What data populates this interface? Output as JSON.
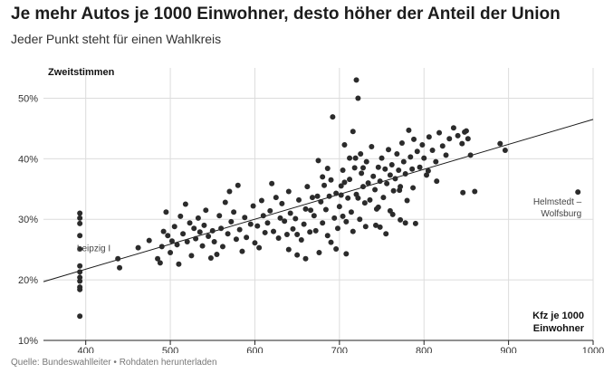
{
  "header": {
    "title": "Je mehr Autos je 1000 Einwohner, desto höher der Anteil der Union",
    "subtitle": "Jeder Punkt steht für einen Wahlkreis"
  },
  "footer": {
    "source": "Quelle: Bundeswahlleiter",
    "separator": " • ",
    "download_link": "Rohdaten herunterladen"
  },
  "colors": {
    "points": "#2b2b2b",
    "trendline": "#1a1a1a",
    "grid": "#dcdcdc",
    "axis": "#222222"
  },
  "chart_data": {
    "type": "scatter",
    "ylabel": "Zweitstimmen",
    "xlabel_lines": [
      "Kfz je 1000",
      "Einwohner"
    ],
    "xlim": [
      350,
      1000
    ],
    "ylim": [
      10,
      55
    ],
    "xticks": [
      {
        "value": 400,
        "label": "400"
      },
      {
        "value": 500,
        "label": "500"
      },
      {
        "value": 600,
        "label": "600"
      },
      {
        "value": 700,
        "label": "700"
      },
      {
        "value": 800,
        "label": "800"
      },
      {
        "value": 900,
        "label": "900"
      },
      {
        "value": 1000,
        "label": "1000"
      }
    ],
    "yticks": [
      {
        "value": 10,
        "label": "10%"
      },
      {
        "value": 20,
        "label": "20%"
      },
      {
        "value": 30,
        "label": "30%"
      },
      {
        "value": 40,
        "label": "40%"
      },
      {
        "value": 50,
        "label": "50%"
      }
    ],
    "grid": true,
    "trendline": {
      "x": [
        350,
        1000
      ],
      "y": [
        19.7,
        46.5
      ]
    },
    "annotations": [
      {
        "lines": [
          "Leipzig I"
        ],
        "x": 438,
        "y": 23.5,
        "anchor": "right"
      },
      {
        "lines": [
          "Helmstedt –",
          "Wolfsburg"
        ],
        "x": 982,
        "y": 34.5,
        "anchor": "right-below"
      }
    ],
    "points": [
      [
        393,
        31.0
      ],
      [
        393,
        30.2
      ],
      [
        393,
        29.3
      ],
      [
        393,
        27.3
      ],
      [
        393,
        25.1
      ],
      [
        393,
        22.3
      ],
      [
        393,
        21.3
      ],
      [
        393,
        20.4
      ],
      [
        393,
        19.8
      ],
      [
        393,
        18.8
      ],
      [
        393,
        18.4
      ],
      [
        393,
        14.0
      ],
      [
        438,
        23.5
      ],
      [
        440,
        22.0
      ],
      [
        462,
        25.3
      ],
      [
        475,
        26.5
      ],
      [
        485,
        23.5
      ],
      [
        488,
        22.8
      ],
      [
        490,
        25.5
      ],
      [
        492,
        28.0
      ],
      [
        495,
        31.2
      ],
      [
        497,
        27.3
      ],
      [
        500,
        24.5
      ],
      [
        502,
        26.4
      ],
      [
        505,
        28.8
      ],
      [
        508,
        25.8
      ],
      [
        510,
        22.6
      ],
      [
        512,
        30.5
      ],
      [
        515,
        27.6
      ],
      [
        518,
        32.5
      ],
      [
        520,
        26.3
      ],
      [
        523,
        29.4
      ],
      [
        525,
        24.0
      ],
      [
        528,
        28.5
      ],
      [
        530,
        26.8
      ],
      [
        533,
        30.2
      ],
      [
        535,
        27.9
      ],
      [
        538,
        25.6
      ],
      [
        540,
        29.0
      ],
      [
        542,
        31.5
      ],
      [
        545,
        27.2
      ],
      [
        548,
        23.6
      ],
      [
        550,
        28.1
      ],
      [
        552,
        26.3
      ],
      [
        555,
        24.2
      ],
      [
        558,
        30.6
      ],
      [
        560,
        28.5
      ],
      [
        562,
        25.5
      ],
      [
        565,
        32.8
      ],
      [
        568,
        27.6
      ],
      [
        570,
        34.6
      ],
      [
        572,
        29.6
      ],
      [
        575,
        31.2
      ],
      [
        578,
        26.7
      ],
      [
        580,
        35.6
      ],
      [
        582,
        28.3
      ],
      [
        585,
        24.7
      ],
      [
        588,
        30.3
      ],
      [
        590,
        27.0
      ],
      [
        595,
        29.2
      ],
      [
        598,
        32.2
      ],
      [
        600,
        26.1
      ],
      [
        603,
        28.9
      ],
      [
        605,
        25.3
      ],
      [
        608,
        33.1
      ],
      [
        610,
        30.6
      ],
      [
        612,
        27.8
      ],
      [
        615,
        29.4
      ],
      [
        618,
        31.4
      ],
      [
        620,
        35.9
      ],
      [
        622,
        28.0
      ],
      [
        625,
        33.6
      ],
      [
        628,
        26.9
      ],
      [
        630,
        30.2
      ],
      [
        632,
        32.6
      ],
      [
        635,
        29.7
      ],
      [
        638,
        27.5
      ],
      [
        640,
        34.6
      ],
      [
        642,
        31.0
      ],
      [
        645,
        28.4
      ],
      [
        648,
        30.1
      ],
      [
        650,
        24.1
      ],
      [
        652,
        33.2
      ],
      [
        655,
        26.6
      ],
      [
        658,
        29.2
      ],
      [
        660,
        31.7
      ],
      [
        662,
        35.4
      ],
      [
        665,
        27.9
      ],
      [
        668,
        33.6
      ],
      [
        670,
        30.6
      ],
      [
        672,
        28.1
      ],
      [
        675,
        39.7
      ],
      [
        678,
        32.9
      ],
      [
        680,
        29.4
      ],
      [
        682,
        35.6
      ],
      [
        684,
        31.6
      ],
      [
        686,
        27.3
      ],
      [
        688,
        33.8
      ],
      [
        690,
        36.5
      ],
      [
        692,
        46.9
      ],
      [
        694,
        30.2
      ],
      [
        696,
        34.3
      ],
      [
        698,
        28.5
      ],
      [
        700,
        32.1
      ],
      [
        702,
        35.5
      ],
      [
        704,
        38.1
      ],
      [
        706,
        42.3
      ],
      [
        708,
        29.6
      ],
      [
        710,
        33.5
      ],
      [
        712,
        36.6
      ],
      [
        714,
        31.2
      ],
      [
        716,
        44.5
      ],
      [
        718,
        38.5
      ],
      [
        720,
        34.1
      ],
      [
        720,
        53.0
      ],
      [
        722,
        50.0
      ],
      [
        724,
        30.0
      ],
      [
        726,
        37.6
      ],
      [
        728,
        35.4
      ],
      [
        730,
        32.7
      ],
      [
        732,
        39.5
      ],
      [
        734,
        36.0
      ],
      [
        736,
        33.2
      ],
      [
        738,
        42.0
      ],
      [
        740,
        37.1
      ],
      [
        742,
        34.9
      ],
      [
        744,
        31.7
      ],
      [
        746,
        38.6
      ],
      [
        748,
        36.3
      ],
      [
        750,
        40.1
      ],
      [
        752,
        33.6
      ],
      [
        754,
        38.3
      ],
      [
        756,
        35.9
      ],
      [
        758,
        41.5
      ],
      [
        760,
        37.3
      ],
      [
        762,
        39.0
      ],
      [
        764,
        34.7
      ],
      [
        766,
        36.7
      ],
      [
        768,
        40.8
      ],
      [
        770,
        38.1
      ],
      [
        772,
        35.4
      ],
      [
        774,
        42.6
      ],
      [
        776,
        39.5
      ],
      [
        778,
        37.5
      ],
      [
        780,
        33.1
      ],
      [
        782,
        44.7
      ],
      [
        784,
        40.3
      ],
      [
        786,
        38.3
      ],
      [
        788,
        43.2
      ],
      [
        790,
        29.3
      ],
      [
        792,
        41.2
      ],
      [
        795,
        38.6
      ],
      [
        798,
        42.3
      ],
      [
        800,
        40.1
      ],
      [
        803,
        37.3
      ],
      [
        806,
        43.6
      ],
      [
        810,
        41.4
      ],
      [
        814,
        39.5
      ],
      [
        818,
        44.3
      ],
      [
        822,
        42.1
      ],
      [
        826,
        40.6
      ],
      [
        830,
        43.3
      ],
      [
        835,
        45.1
      ],
      [
        840,
        43.8
      ],
      [
        845,
        42.5
      ],
      [
        848,
        44.4
      ],
      [
        850,
        44.6
      ],
      [
        852,
        43.3
      ],
      [
        855,
        40.6
      ],
      [
        846,
        34.4
      ],
      [
        860,
        34.6
      ],
      [
        890,
        42.5
      ],
      [
        896,
        41.4
      ],
      [
        982,
        34.5
      ],
      [
        686,
        38.4
      ],
      [
        708,
        24.3
      ],
      [
        719,
        40.1
      ],
      [
        725,
        40.8
      ],
      [
        731,
        28.8
      ],
      [
        743,
        29.0
      ],
      [
        755,
        27.6
      ],
      [
        763,
        30.8
      ],
      [
        771,
        34.8
      ],
      [
        787,
        35.2
      ],
      [
        805,
        38.0
      ],
      [
        815,
        36.3
      ],
      [
        690,
        26.2
      ],
      [
        696,
        25.1
      ],
      [
        676,
        24.5
      ],
      [
        660,
        23.5
      ],
      [
        650,
        27.5
      ],
      [
        640,
        25.0
      ],
      [
        706,
        36.1
      ],
      [
        712,
        40.1
      ],
      [
        728,
        38.5
      ],
      [
        746,
        32.0
      ],
      [
        760,
        31.4
      ],
      [
        772,
        29.9
      ],
      [
        778,
        29.4
      ],
      [
        674,
        33.8
      ],
      [
        680,
        37.0
      ],
      [
        702,
        34.0
      ],
      [
        704,
        30.5
      ],
      [
        666,
        31.5
      ],
      [
        716,
        28.0
      ],
      [
        722,
        33.5
      ],
      [
        748,
        28.7
      ]
    ]
  }
}
